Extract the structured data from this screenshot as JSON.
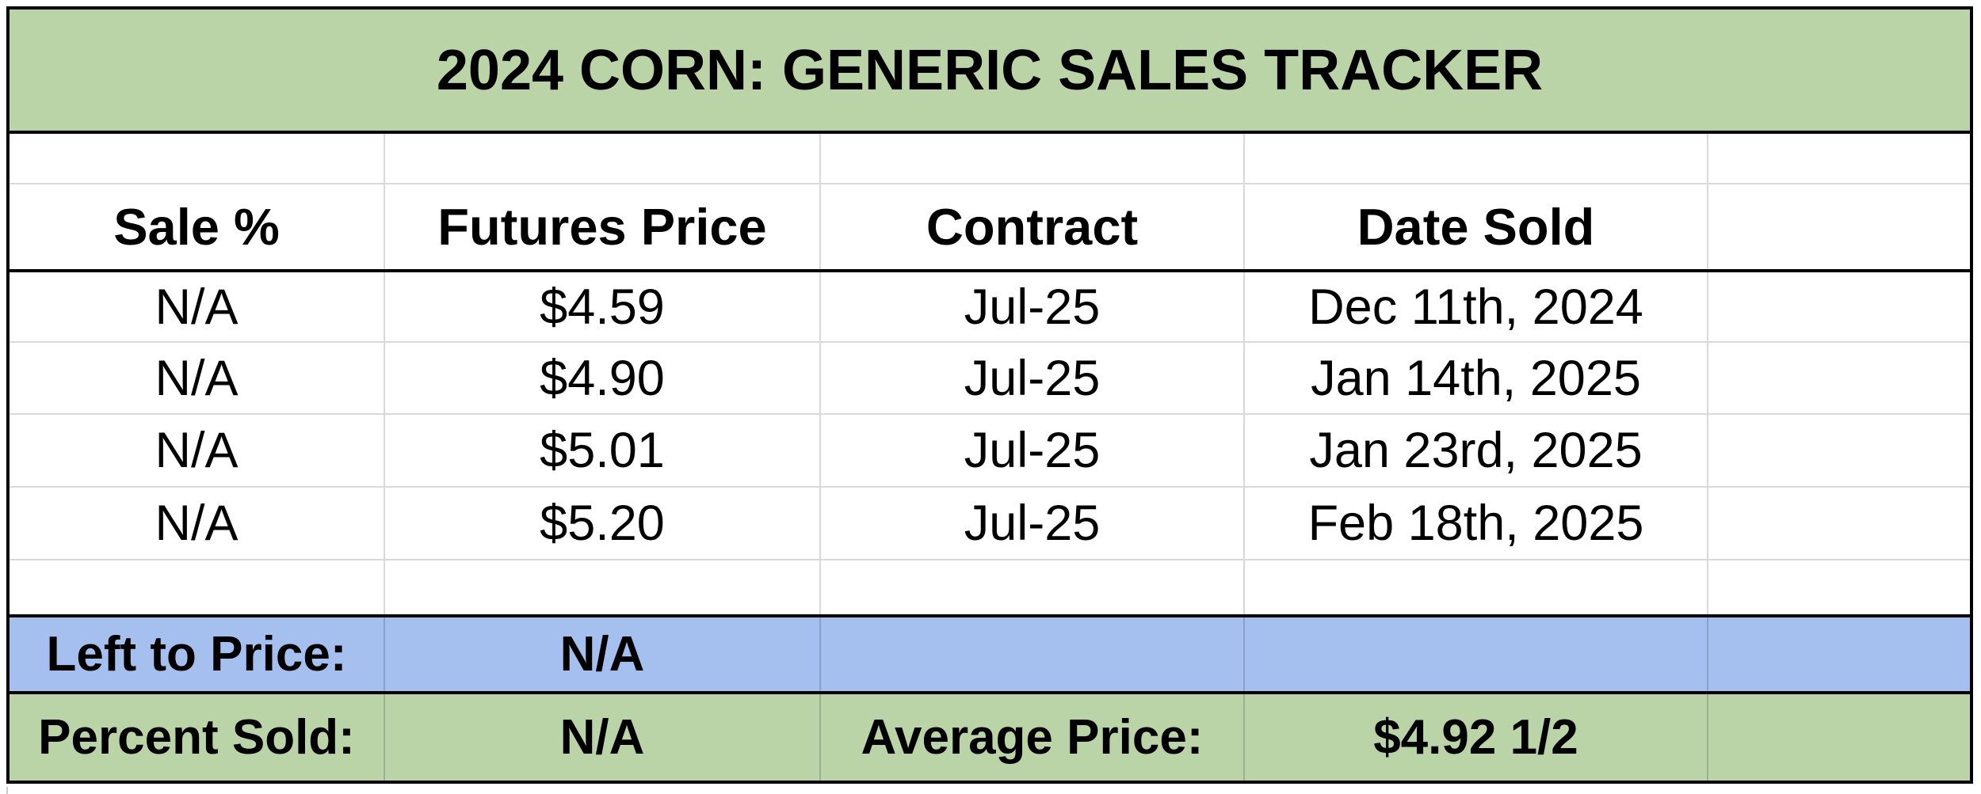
{
  "chart_data": {
    "type": "table",
    "title": "2024 CORN: GENERIC SALES TRACKER",
    "columns": [
      "Sale %",
      "Futures Price",
      "Contract",
      "Date Sold"
    ],
    "rows": [
      [
        "N/A",
        "$4.59",
        "Jul-25",
        "Dec 11th, 2024"
      ],
      [
        "N/A",
        "$4.90",
        "Jul-25",
        "Jan 14th, 2025"
      ],
      [
        "N/A",
        "$5.01",
        "Jul-25",
        "Jan 23rd, 2025"
      ],
      [
        "N/A",
        "$5.20",
        "Jul-25",
        "Feb 18th, 2025"
      ]
    ],
    "summary": {
      "left_to_price_label": "Left to Price:",
      "left_to_price_value": "N/A",
      "percent_sold_label": "Percent Sold:",
      "percent_sold_value": "N/A",
      "average_price_label": "Average Price:",
      "average_price_value": "$4.92 1/2"
    },
    "layout_hints": {
      "grid": "on",
      "merged_title_row": true,
      "column_count": 5,
      "fifth_column_blank": true
    }
  },
  "colors": {
    "title_row_green": "#bad4a7",
    "summary_row_blue": "#a5bfee",
    "summary_row_green": "#bad4a7",
    "grid_line_gray": "#d9d9d9",
    "border_black": "#000000",
    "text_black": "#000000"
  }
}
